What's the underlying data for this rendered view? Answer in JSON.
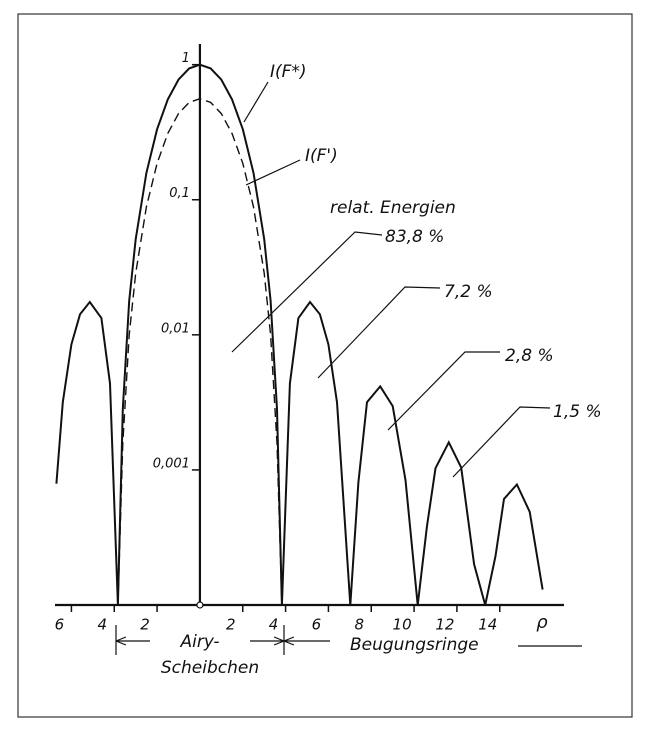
{
  "chart_data": {
    "type": "line",
    "log_y": true,
    "x": [
      -6.7,
      -6.4,
      -6,
      -5.6,
      -5.14,
      -4.6,
      -4.2,
      -3.83,
      -3.6,
      -3.3,
      -3,
      -2.5,
      -2,
      -1.5,
      -1,
      -0.5,
      0,
      0.5,
      1,
      1.5,
      2,
      2.5,
      3,
      3.3,
      3.6,
      3.83,
      4.2,
      4.6,
      5.14,
      5.6,
      6,
      6.4,
      7.02,
      7.4,
      7.8,
      8.42,
      9,
      9.6,
      10.17,
      10.6,
      11,
      11.62,
      12.2,
      12.8,
      13.32,
      13.8,
      14.2,
      14.8,
      15.4,
      16
    ],
    "series": [
      {
        "name": "I(F*)",
        "color": "#111111",
        "dashed": false,
        "values": [
          0.00079,
          0.00317,
          0.0085,
          0.0142,
          0.0175,
          0.0133,
          0.00436,
          0.0001,
          0.00282,
          0.0179,
          0.0511,
          0.158,
          0.333,
          0.553,
          0.775,
          0.939,
          1,
          0.939,
          0.775,
          0.553,
          0.333,
          0.158,
          0.0511,
          0.0179,
          0.00282,
          0.0001,
          0.00436,
          0.0133,
          0.0175,
          0.0142,
          0.0085,
          0.00317,
          0.0001,
          0.00081,
          0.00317,
          0.00415,
          0.00297,
          0.00084,
          0.0001,
          0.00038,
          0.00103,
          0.0016,
          0.00104,
          0.0002,
          0.0001,
          0.00023,
          0.00061,
          0.00078,
          0.00049,
          0.00013
        ]
      },
      {
        "name": "I(F')",
        "color": "#111111",
        "dashed": true,
        "values": [
          null,
          null,
          null,
          null,
          null,
          null,
          null,
          0.0001,
          0.00158,
          0.01,
          0.0286,
          0.0885,
          0.186,
          0.31,
          0.434,
          0.526,
          0.56,
          0.526,
          0.434,
          0.31,
          0.186,
          0.0885,
          0.0286,
          0.01,
          0.00158,
          0.0001,
          null,
          null,
          null,
          null,
          null,
          null,
          null,
          null,
          null,
          null,
          null,
          null,
          null,
          null,
          null,
          null,
          null,
          null,
          null,
          null,
          null,
          null,
          null,
          null
        ]
      }
    ],
    "xlim": [
      -7,
      17
    ],
    "ylim": [
      0.0001,
      2
    ],
    "xticks": [
      {
        "value": -6,
        "label": "6"
      },
      {
        "value": -4,
        "label": "4"
      },
      {
        "value": -2,
        "label": "2"
      },
      2,
      4,
      6,
      8,
      10,
      12,
      14
    ],
    "yticks": [
      1,
      {
        "value": 0.1,
        "label": "0,1"
      },
      {
        "value": 0.01,
        "label": "0,01"
      },
      {
        "value": 0.001,
        "label": "0,001"
      }
    ],
    "xlabel": "ρ",
    "annotations": [
      "relat. Energien",
      "83,8 %",
      "7,2 %",
      "2,8 %",
      "1,5 %",
      "Airy-",
      "Scheibchen",
      "Beugungsringe"
    ]
  }
}
